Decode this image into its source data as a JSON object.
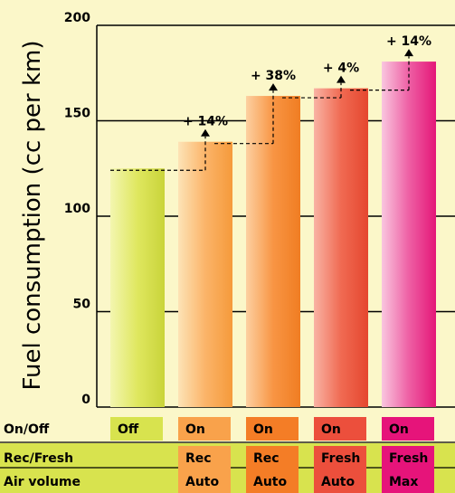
{
  "chart_data": {
    "type": "bar",
    "title": "",
    "xlabel": "",
    "ylabel": "Fuel consumption (cc per km)",
    "ylim": [
      0,
      200
    ],
    "yticks": [
      0,
      50,
      100,
      150,
      200
    ],
    "grid": true,
    "legend": "none",
    "categories": [
      "Off",
      "On / Rec / Auto",
      "On / Rec / Auto",
      "On / Fresh / Auto",
      "On / Fresh / Max"
    ],
    "values": [
      125,
      139,
      163,
      167,
      181
    ],
    "bar_colors": [
      "#d8e34e",
      "#f9a24b",
      "#f47d26",
      "#ec4f3c",
      "#e6147a"
    ],
    "annotations": [
      "+ 14%",
      "+ 38%",
      "+ 4%",
      "+ 14%"
    ],
    "table": {
      "row_labels": [
        "On/Off",
        "Rec/Fresh",
        "Air volume"
      ],
      "rows": [
        [
          "Off",
          "On",
          "On",
          "On",
          "On"
        ],
        [
          "",
          "Rec",
          "Rec",
          "Fresh",
          "Fresh"
        ],
        [
          "",
          "Auto",
          "Auto",
          "Auto",
          "Max"
        ]
      ]
    }
  },
  "colors": {
    "background": "#fbf7c9",
    "table_band": "#d8e34e",
    "axis": "#000000"
  }
}
